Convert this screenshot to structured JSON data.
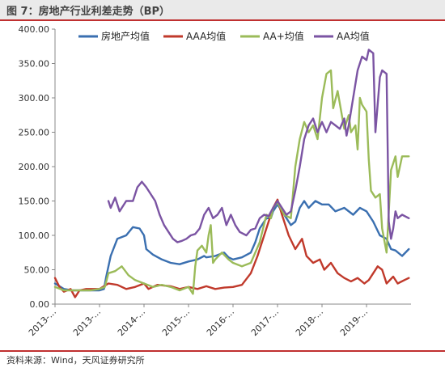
{
  "header": {
    "title": "图 7：房地产行业利差走势（BP）"
  },
  "footer": {
    "source": "资料来源：Wind，天风证券研究所"
  },
  "chart_data": {
    "type": "line",
    "title": "房地产行业利差走势（BP）",
    "ylabel": "",
    "xlabel": "",
    "ylim": [
      0,
      400
    ],
    "yticks": [
      "0.00",
      "50.00",
      "100.00",
      "150.00",
      "200.00",
      "250.00",
      "300.00",
      "350.00",
      "400.00"
    ],
    "xticks": [
      "2013-...",
      "2013-...",
      "2014-...",
      "2015-...",
      "2016-...",
      "2017-...",
      "2018-...",
      "2019-..."
    ],
    "xlim": [
      0,
      8
    ],
    "grid": false,
    "legend_position": "top",
    "series": [
      {
        "name": "房地产均值",
        "color": "#3a6fb0",
        "points": [
          [
            0.0,
            30
          ],
          [
            0.2,
            22
          ],
          [
            0.4,
            20
          ],
          [
            0.7,
            20
          ],
          [
            1.0,
            20
          ],
          [
            1.1,
            22
          ],
          [
            1.15,
            40
          ],
          [
            1.25,
            70
          ],
          [
            1.4,
            95
          ],
          [
            1.6,
            100
          ],
          [
            1.75,
            112
          ],
          [
            1.9,
            110
          ],
          [
            2.0,
            100
          ],
          [
            2.05,
            80
          ],
          [
            2.2,
            72
          ],
          [
            2.4,
            65
          ],
          [
            2.6,
            60
          ],
          [
            2.8,
            58
          ],
          [
            3.0,
            62
          ],
          [
            3.2,
            65
          ],
          [
            3.35,
            70
          ],
          [
            3.4,
            68
          ],
          [
            3.6,
            70
          ],
          [
            3.8,
            75
          ],
          [
            3.9,
            68
          ],
          [
            4.0,
            65
          ],
          [
            4.2,
            68
          ],
          [
            4.4,
            75
          ],
          [
            4.5,
            90
          ],
          [
            4.6,
            110
          ],
          [
            4.75,
            125
          ],
          [
            4.85,
            125
          ],
          [
            4.9,
            135
          ],
          [
            5.0,
            145
          ],
          [
            5.15,
            130
          ],
          [
            5.3,
            115
          ],
          [
            5.4,
            120
          ],
          [
            5.5,
            140
          ],
          [
            5.6,
            150
          ],
          [
            5.7,
            140
          ],
          [
            5.85,
            150
          ],
          [
            6.0,
            145
          ],
          [
            6.15,
            145
          ],
          [
            6.3,
            135
          ],
          [
            6.5,
            140
          ],
          [
            6.7,
            130
          ],
          [
            6.85,
            140
          ],
          [
            7.0,
            135
          ],
          [
            7.15,
            120
          ],
          [
            7.3,
            100
          ],
          [
            7.45,
            95
          ],
          [
            7.55,
            80
          ],
          [
            7.65,
            78
          ],
          [
            7.8,
            70
          ],
          [
            7.95,
            80
          ]
        ]
      },
      {
        "name": "AAA均值",
        "color": "#c0392b",
        "points": [
          [
            0.0,
            38
          ],
          [
            0.1,
            25
          ],
          [
            0.2,
            18
          ],
          [
            0.35,
            22
          ],
          [
            0.45,
            10
          ],
          [
            0.55,
            20
          ],
          [
            0.7,
            22
          ],
          [
            0.85,
            22
          ],
          [
            1.0,
            22
          ],
          [
            1.2,
            30
          ],
          [
            1.4,
            28
          ],
          [
            1.6,
            22
          ],
          [
            1.8,
            25
          ],
          [
            2.0,
            30
          ],
          [
            2.1,
            22
          ],
          [
            2.3,
            28
          ],
          [
            2.6,
            26
          ],
          [
            2.8,
            22
          ],
          [
            3.0,
            25
          ],
          [
            3.2,
            22
          ],
          [
            3.4,
            26
          ],
          [
            3.6,
            22
          ],
          [
            3.8,
            24
          ],
          [
            4.0,
            25
          ],
          [
            4.2,
            28
          ],
          [
            4.4,
            45
          ],
          [
            4.55,
            70
          ],
          [
            4.7,
            100
          ],
          [
            4.8,
            120
          ],
          [
            4.9,
            140
          ],
          [
            5.0,
            152
          ],
          [
            5.1,
            130
          ],
          [
            5.25,
            100
          ],
          [
            5.4,
            80
          ],
          [
            5.55,
            95
          ],
          [
            5.65,
            70
          ],
          [
            5.8,
            60
          ],
          [
            5.95,
            65
          ],
          [
            6.05,
            50
          ],
          [
            6.2,
            60
          ],
          [
            6.35,
            45
          ],
          [
            6.5,
            38
          ],
          [
            6.65,
            33
          ],
          [
            6.8,
            38
          ],
          [
            6.95,
            30
          ],
          [
            7.05,
            35
          ],
          [
            7.25,
            55
          ],
          [
            7.35,
            50
          ],
          [
            7.45,
            30
          ],
          [
            7.6,
            40
          ],
          [
            7.7,
            30
          ],
          [
            7.85,
            35
          ],
          [
            7.95,
            38
          ]
        ]
      },
      {
        "name": "AA+均值",
        "color": "#9bbb59",
        "points": [
          [
            0.0,
            25
          ],
          [
            0.2,
            20
          ],
          [
            0.5,
            20
          ],
          [
            0.8,
            20
          ],
          [
            1.0,
            22
          ],
          [
            1.12,
            25
          ],
          [
            1.2,
            45
          ],
          [
            1.35,
            48
          ],
          [
            1.5,
            55
          ],
          [
            1.65,
            42
          ],
          [
            1.8,
            35
          ],
          [
            2.0,
            30
          ],
          [
            2.2,
            25
          ],
          [
            2.4,
            28
          ],
          [
            2.6,
            25
          ],
          [
            2.8,
            20
          ],
          [
            3.0,
            25
          ],
          [
            3.1,
            15
          ],
          [
            3.15,
            55
          ],
          [
            3.2,
            78
          ],
          [
            3.3,
            85
          ],
          [
            3.4,
            75
          ],
          [
            3.45,
            100
          ],
          [
            3.5,
            115
          ],
          [
            3.55,
            60
          ],
          [
            3.6,
            65
          ],
          [
            3.75,
            75
          ],
          [
            3.9,
            65
          ],
          [
            4.0,
            60
          ],
          [
            4.2,
            55
          ],
          [
            4.4,
            60
          ],
          [
            4.5,
            75
          ],
          [
            4.6,
            90
          ],
          [
            4.75,
            130
          ],
          [
            4.85,
            125
          ],
          [
            4.9,
            140
          ],
          [
            5.0,
            148
          ],
          [
            5.15,
            130
          ],
          [
            5.3,
            125
          ],
          [
            5.4,
            200
          ],
          [
            5.5,
            240
          ],
          [
            5.6,
            265
          ],
          [
            5.7,
            250
          ],
          [
            5.8,
            260
          ],
          [
            5.9,
            240
          ],
          [
            6.0,
            300
          ],
          [
            6.1,
            335
          ],
          [
            6.2,
            340
          ],
          [
            6.25,
            285
          ],
          [
            6.35,
            310
          ],
          [
            6.5,
            255
          ],
          [
            6.6,
            275
          ],
          [
            6.65,
            250
          ],
          [
            6.75,
            260
          ],
          [
            6.8,
            225
          ],
          [
            6.85,
            300
          ],
          [
            6.9,
            290
          ],
          [
            7.0,
            280
          ],
          [
            7.05,
            210
          ],
          [
            7.1,
            165
          ],
          [
            7.2,
            155
          ],
          [
            7.3,
            160
          ],
          [
            7.35,
            110
          ],
          [
            7.45,
            75
          ],
          [
            7.55,
            195
          ],
          [
            7.65,
            215
          ],
          [
            7.7,
            185
          ],
          [
            7.8,
            215
          ],
          [
            7.95,
            215
          ]
        ]
      },
      {
        "name": "AA均值",
        "color": "#7b54a3",
        "points": [
          [
            1.2,
            150
          ],
          [
            1.25,
            140
          ],
          [
            1.35,
            155
          ],
          [
            1.45,
            135
          ],
          [
            1.6,
            150
          ],
          [
            1.75,
            150
          ],
          [
            1.85,
            170
          ],
          [
            1.95,
            178
          ],
          [
            2.05,
            170
          ],
          [
            2.15,
            160
          ],
          [
            2.25,
            150
          ],
          [
            2.35,
            130
          ],
          [
            2.45,
            115
          ],
          [
            2.55,
            105
          ],
          [
            2.65,
            95
          ],
          [
            2.75,
            90
          ],
          [
            2.85,
            92
          ],
          [
            2.95,
            95
          ],
          [
            3.05,
            100
          ],
          [
            3.15,
            102
          ],
          [
            3.25,
            110
          ],
          [
            3.35,
            130
          ],
          [
            3.45,
            140
          ],
          [
            3.55,
            125
          ],
          [
            3.65,
            130
          ],
          [
            3.75,
            140
          ],
          [
            3.85,
            115
          ],
          [
            3.95,
            130
          ],
          [
            4.05,
            115
          ],
          [
            4.15,
            105
          ],
          [
            4.3,
            100
          ],
          [
            4.4,
            108
          ],
          [
            4.5,
            110
          ],
          [
            4.6,
            125
          ],
          [
            4.7,
            130
          ],
          [
            4.8,
            128
          ],
          [
            4.9,
            140
          ],
          [
            5.0,
            150
          ],
          [
            5.1,
            140
          ],
          [
            5.2,
            130
          ],
          [
            5.3,
            135
          ],
          [
            5.4,
            165
          ],
          [
            5.5,
            200
          ],
          [
            5.6,
            240
          ],
          [
            5.7,
            260
          ],
          [
            5.8,
            270
          ],
          [
            5.9,
            250
          ],
          [
            6.0,
            265
          ],
          [
            6.1,
            250
          ],
          [
            6.2,
            265
          ],
          [
            6.3,
            260
          ],
          [
            6.4,
            255
          ],
          [
            6.5,
            270
          ],
          [
            6.55,
            245
          ],
          [
            6.6,
            260
          ],
          [
            6.7,
            300
          ],
          [
            6.8,
            340
          ],
          [
            6.9,
            360
          ],
          [
            7.0,
            355
          ],
          [
            7.05,
            370
          ],
          [
            7.15,
            365
          ],
          [
            7.2,
            250
          ],
          [
            7.3,
            330
          ],
          [
            7.35,
            340
          ],
          [
            7.45,
            335
          ],
          [
            7.5,
            120
          ],
          [
            7.55,
            95
          ],
          [
            7.6,
            110
          ],
          [
            7.65,
            135
          ],
          [
            7.7,
            125
          ],
          [
            7.8,
            130
          ],
          [
            7.95,
            125
          ]
        ]
      }
    ]
  }
}
